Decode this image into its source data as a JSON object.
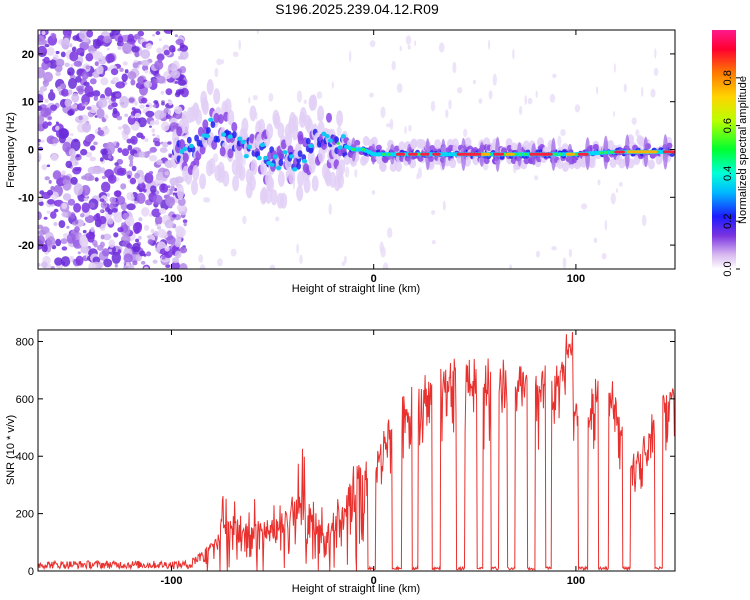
{
  "title": "S196.2025.239.04.12.R09",
  "colors": {
    "snr_line": "#e8312e",
    "blob_purple": "#7a33e0",
    "background": "#ffffff"
  },
  "chart_data": [
    {
      "type": "heatmap",
      "name": "spectrogram",
      "xlabel": "Height of straight line (km)",
      "ylabel": "Frequency (Hz)",
      "xlim": [
        -166,
        149
      ],
      "ylim": [
        -25,
        25
      ],
      "xticks": [
        -100,
        0,
        100
      ],
      "yticks": [
        -20,
        -10,
        0,
        10,
        20
      ],
      "ridge": {
        "x": [
          -98,
          -92,
          -85,
          -80,
          -75,
          -70,
          -62,
          -55,
          -48,
          -40,
          -34,
          -28,
          -22,
          -16,
          -10,
          -5,
          0,
          10,
          20,
          40,
          60,
          80,
          100,
          120,
          140,
          148
        ],
        "hz": [
          -1,
          0,
          2,
          5,
          3,
          2,
          0,
          -1,
          -2,
          -3,
          -1,
          2,
          2,
          1,
          0,
          0,
          -1,
          -1,
          -1,
          -1,
          -1,
          -1,
          -1,
          -0.5,
          -0.5,
          -0.5
        ]
      },
      "colorbar": {
        "label": "Normalized spectral amplitude",
        "range": [
          0,
          1
        ],
        "ticks": [
          0.0,
          0.2,
          0.4,
          0.6,
          0.8
        ],
        "tick_labels": [
          "0.0",
          "0.2",
          "0.4",
          "0.6",
          "0.8"
        ]
      }
    },
    {
      "type": "line",
      "name": "snr",
      "xlabel": "Height of straight line (km)",
      "ylabel": "SNR (10 * v/v)",
      "xlim": [
        -166,
        149
      ],
      "ylim": [
        0,
        840
      ],
      "xticks": [
        -100,
        0,
        100
      ],
      "yticks": [
        0,
        200,
        400,
        600,
        800
      ],
      "envelope": {
        "x": [
          -166,
          -120,
          -100,
          -90,
          -80,
          -72,
          -65,
          -55,
          -45,
          -35,
          -25,
          -15,
          -10,
          0,
          10,
          20,
          30,
          40,
          60,
          80,
          95,
          100,
          105,
          110,
          115,
          125,
          130,
          140,
          149
        ],
        "snr": [
          20,
          20,
          25,
          40,
          100,
          230,
          160,
          170,
          190,
          280,
          150,
          210,
          360,
          380,
          560,
          620,
          660,
          700,
          690,
          680,
          720,
          580,
          500,
          660,
          700,
          450,
          380,
          560,
          660
        ]
      },
      "dropouts": [
        [
          -3,
          1
        ],
        [
          9,
          14
        ],
        [
          19,
          22
        ],
        [
          29,
          33
        ],
        [
          41,
          45
        ],
        [
          51,
          54
        ],
        [
          58,
          62
        ],
        [
          66,
          70
        ],
        [
          76,
          80
        ],
        [
          85,
          88
        ],
        [
          101,
          106
        ],
        [
          111,
          116
        ],
        [
          123,
          127
        ],
        [
          139,
          143
        ]
      ]
    }
  ]
}
